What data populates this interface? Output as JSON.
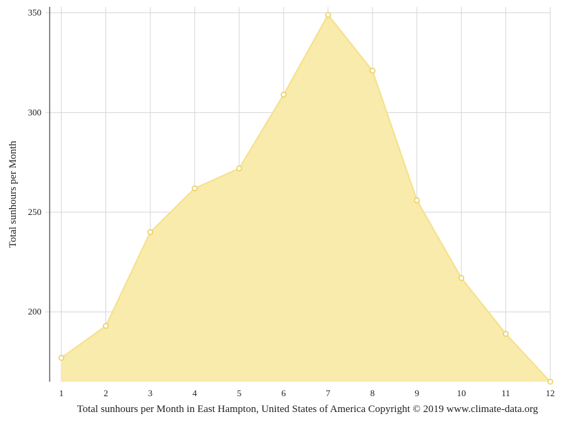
{
  "chart_data": {
    "type": "area",
    "x": [
      1,
      2,
      3,
      4,
      5,
      6,
      7,
      8,
      9,
      10,
      11,
      12
    ],
    "values": [
      177,
      193,
      240,
      262,
      272,
      309,
      349,
      321,
      256,
      217,
      189,
      165
    ],
    "ylabel": "Total sunhours per Month",
    "caption": "Total sunhours per Month in East Hampton, United States of America Copyright © 2019 www.climate-data.org",
    "y_ticks": [
      200,
      250,
      300,
      350
    ],
    "ylim": [
      165,
      353
    ],
    "xlim": [
      1,
      12
    ],
    "grid": true,
    "fill_color": "#f9eaa7",
    "line_color": "#f5e08a",
    "marker_color": "#e8cf5a"
  }
}
